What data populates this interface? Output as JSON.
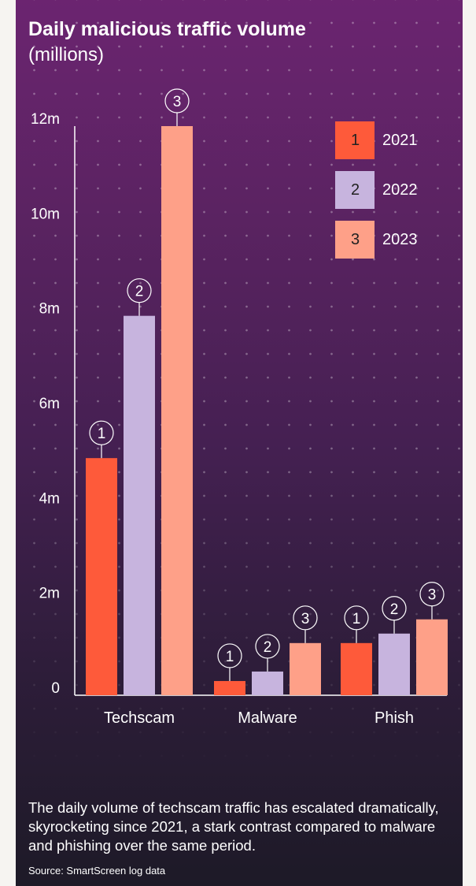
{
  "title": "Daily malicious traffic volume",
  "subtitle": "(millions)",
  "caption": "The daily volume of techscam traffic has escalated dramatically, skyrocketing since 2021, a stark contrast compared to malware and phishing over the same period.",
  "source": "Source: SmartScreen log data",
  "colors": {
    "2021": "#fe5a3a",
    "2022": "#c7b4de",
    "2023": "#fea088"
  },
  "legend": [
    {
      "marker": "1",
      "label": "2021",
      "color": "#fe5a3a"
    },
    {
      "marker": "2",
      "label": "2022",
      "color": "#c7b4de"
    },
    {
      "marker": "3",
      "label": "2023",
      "color": "#fea088"
    }
  ],
  "chart_data": {
    "type": "bar",
    "title": "Daily malicious traffic volume",
    "subtitle": "(millions)",
    "categories": [
      "Techscam",
      "Malware",
      "Phish"
    ],
    "series": [
      {
        "name": "2021",
        "marker": "1",
        "values": [
          5.0,
          0.3,
          1.1
        ]
      },
      {
        "name": "2022",
        "marker": "2",
        "values": [
          8.0,
          0.5,
          1.3
        ]
      },
      {
        "name": "2023",
        "marker": "3",
        "values": [
          12.0,
          1.1,
          1.6
        ]
      }
    ],
    "ylim": [
      0,
      12
    ],
    "yticks": [
      {
        "value": 0,
        "label": "0"
      },
      {
        "value": 2,
        "label": "2m"
      },
      {
        "value": 4,
        "label": "4m"
      },
      {
        "value": 6,
        "label": "6m"
      },
      {
        "value": 8,
        "label": "8m"
      },
      {
        "value": 10,
        "label": "10m"
      },
      {
        "value": 12,
        "label": "12m"
      }
    ],
    "grid": false,
    "legend_position": "top-right"
  }
}
